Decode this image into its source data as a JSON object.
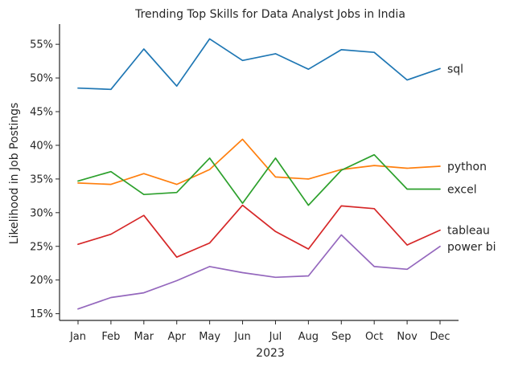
{
  "chart_data": {
    "type": "line",
    "title": "Trending Top Skills for Data Analyst Jobs in India",
    "xlabel": "2023",
    "ylabel": "Likelihood in Job Postings",
    "categories": [
      "Jan",
      "Feb",
      "Mar",
      "Apr",
      "May",
      "Jun",
      "Jul",
      "Aug",
      "Sep",
      "Oct",
      "Nov",
      "Dec"
    ],
    "ylim": [
      14,
      58
    ],
    "yticks": [
      15,
      20,
      25,
      30,
      35,
      40,
      45,
      50,
      55
    ],
    "ytick_format": "{v}%",
    "grid": false,
    "legend": "direct labels at right end of lines",
    "series": [
      {
        "name": "sql",
        "color": "#1f77b4",
        "values": [
          48.5,
          48.3,
          54.3,
          48.8,
          55.8,
          52.6,
          53.6,
          51.3,
          54.2,
          53.8,
          49.7,
          51.4
        ]
      },
      {
        "name": "python",
        "color": "#ff7f0e",
        "values": [
          34.4,
          34.2,
          35.8,
          34.2,
          36.4,
          40.9,
          35.3,
          35.0,
          36.4,
          37.0,
          36.6,
          36.9
        ]
      },
      {
        "name": "excel",
        "color": "#2ca02c",
        "values": [
          34.7,
          36.1,
          32.7,
          33.0,
          38.1,
          31.4,
          38.1,
          31.1,
          36.3,
          38.6,
          33.5,
          33.5
        ]
      },
      {
        "name": "tableau",
        "color": "#d62728",
        "values": [
          25.3,
          26.8,
          29.6,
          23.4,
          25.5,
          31.1,
          27.2,
          24.6,
          31.0,
          30.6,
          25.2,
          27.4
        ]
      },
      {
        "name": "power bi",
        "color": "#9467bd",
        "values": [
          15.7,
          17.4,
          18.1,
          19.9,
          22.0,
          21.1,
          20.4,
          20.6,
          26.7,
          22.0,
          21.6,
          25.0
        ]
      }
    ]
  }
}
